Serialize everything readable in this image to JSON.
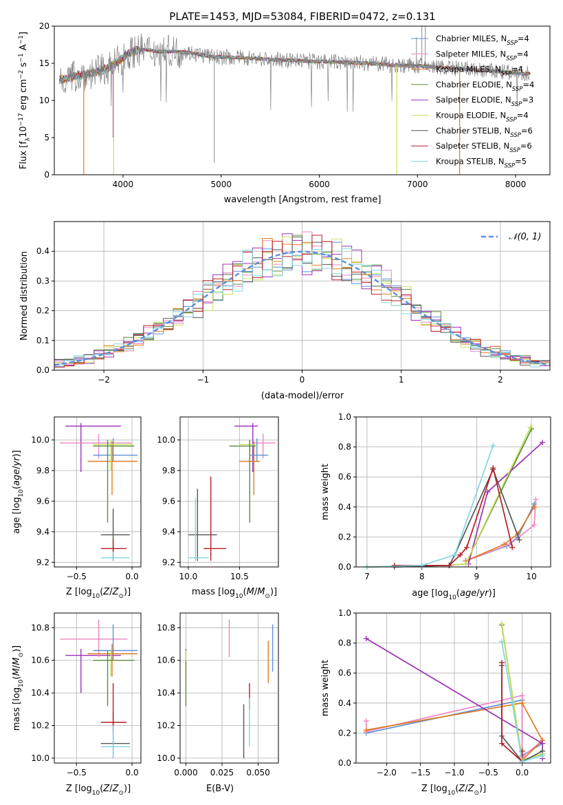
{
  "colors": {
    "Chabrier MILES": "#5b8fd8",
    "Salpeter MILES": "#e986c2",
    "Kroupa MILES": "#e07b22",
    "Chabrier ELODIE": "#5a8c3c",
    "Salpeter ELODIE": "#9b30b5",
    "Kroupa ELODIE": "#c9e05a",
    "Chabrier STELIB": "#555555",
    "Salpeter STELIB": "#b81b22",
    "Kroupa STELIB": "#7fd6e0"
  },
  "chart_data": [
    {
      "type": "line",
      "title": "PLATE=1453, MJD=53084, FIBERID=0472, z=0.131",
      "xlabel": "wavelength [Angstrom, rest frame]",
      "ylabel": "Flux [f_λ10^-17 erg cm^-2 s^-1 A^-1]",
      "xlim": [
        3300,
        8350
      ],
      "ylim": [
        0,
        20
      ],
      "xticks": [
        4000,
        5000,
        6000,
        7000,
        8000
      ],
      "yticks": [
        0,
        5,
        10,
        15,
        20
      ],
      "grid": false,
      "legend_position": "upper right",
      "legend": [
        {
          "name": "Chabrier MILES",
          "nssp": "4"
        },
        {
          "name": "Salpeter MILES",
          "nssp": "4"
        },
        {
          "name": "Kroupa MILES",
          "nssp": "4"
        },
        {
          "name": "Chabrier ELODIE",
          "nssp": "4"
        },
        {
          "name": "Salpeter ELODIE",
          "nssp": "3"
        },
        {
          "name": "Kroupa ELODIE",
          "nssp": "4"
        },
        {
          "name": "Chabrier STELIB",
          "nssp": "6"
        },
        {
          "name": "Salpeter STELIB",
          "nssp": "6"
        },
        {
          "name": "Kroupa STELIB",
          "nssp": "5"
        }
      ],
      "data_continuum": {
        "x": [
          3350,
          3450,
          3550,
          3650,
          3750,
          3850,
          3950,
          4050,
          4150,
          4250,
          4350,
          4500,
          4700,
          4900,
          5100,
          5300,
          5500,
          5700,
          5900,
          6100,
          6300,
          6500,
          6700,
          6900,
          7100,
          7300,
          7500,
          7700,
          7900,
          8100
        ],
        "y": [
          12.8,
          13.0,
          13.4,
          13.6,
          13.9,
          14.4,
          15.2,
          16.3,
          16.8,
          16.8,
          16.6,
          16.6,
          16.4,
          15.9,
          15.8,
          15.7,
          15.5,
          15.4,
          15.3,
          15.2,
          15.1,
          15.0,
          14.8,
          14.7,
          14.6,
          14.4,
          14.2,
          14.0,
          13.8,
          13.6
        ]
      },
      "model_dips": [
        {
          "series": "Kroupa MILES",
          "x": 3600,
          "to": 0
        },
        {
          "series": "Salpeter ELODIE",
          "x": 3900,
          "to": 5
        },
        {
          "series": "Kroupa ELODIE",
          "x": 3905,
          "to": 0
        },
        {
          "series": "Kroupa ELODIE",
          "x": 6790,
          "to": 0
        },
        {
          "series": "Kroupa MILES",
          "x": 7430,
          "to": 0
        }
      ]
    },
    {
      "type": "line",
      "xlabel": "(data-model)/error",
      "ylabel": "Normed distribution",
      "xlim": [
        -2.5,
        2.5
      ],
      "ylim": [
        0,
        0.5
      ],
      "xticks": [
        -2,
        -1,
        0,
        1,
        2
      ],
      "yticks": [
        0.0,
        0.1,
        0.2,
        0.3,
        0.4
      ],
      "grid": true,
      "legend_position": "upper right",
      "legend": [
        "N(0,1)"
      ],
      "histogram_bin_width": 0.1
    },
    {
      "type": "scatter",
      "xlabel": "Z [log10(Z/Z⊙)]",
      "ylabel": "age  [log10(age/yr)]",
      "xlim": [
        -0.7,
        0.08
      ],
      "ylim": [
        9.17,
        10.15
      ],
      "xticks": [
        -0.5,
        0.0
      ],
      "yticks": [
        9.2,
        9.4,
        9.6,
        9.8,
        10.0
      ],
      "grid": true,
      "points": [
        {
          "series": "Salpeter ELODIE",
          "x": -0.46,
          "y": 10.09,
          "xlo": -0.6,
          "xhi": -0.1,
          "ylo": 9.79,
          "yhi": 10.11
        },
        {
          "series": "Salpeter MILES",
          "x": -0.3,
          "y": 9.98,
          "xlo": -0.65,
          "xhi": 0.0,
          "ylo": 9.88,
          "yhi": 10.04
        },
        {
          "series": "Chabrier MILES",
          "x": -0.17,
          "y": 9.9,
          "xlo": -0.35,
          "xhi": 0.05,
          "ylo": 9.86,
          "yhi": 10.01
        },
        {
          "series": "Kroupa MILES",
          "x": -0.18,
          "y": 9.86,
          "xlo": -0.4,
          "xhi": 0.05,
          "ylo": 9.64,
          "yhi": 9.99
        },
        {
          "series": "Kroupa ELODIE",
          "x": -0.19,
          "y": 9.97,
          "xlo": -0.35,
          "xhi": 0.01,
          "ylo": 9.8,
          "yhi": 10.0
        },
        {
          "series": "Chabrier ELODIE",
          "x": -0.22,
          "y": 9.96,
          "xlo": -0.35,
          "xhi": 0.02,
          "ylo": 9.46,
          "yhi": 10.0
        },
        {
          "series": "Chabrier STELIB",
          "x": -0.17,
          "y": 9.38,
          "xlo": -0.28,
          "xhi": -0.02,
          "ylo": 9.21,
          "yhi": 9.55
        },
        {
          "series": "Salpeter STELIB",
          "x": -0.17,
          "y": 9.29,
          "xlo": -0.28,
          "xhi": -0.05,
          "ylo": 9.21,
          "yhi": 9.35
        },
        {
          "series": "Kroupa STELIB",
          "x": -0.17,
          "y": 9.23,
          "xlo": -0.28,
          "xhi": -0.02,
          "ylo": 9.21,
          "yhi": 9.27
        }
      ]
    },
    {
      "type": "scatter",
      "xlabel": "mass [log10(M/M⊙)]",
      "ylabel": "",
      "xlim": [
        9.92,
        10.88
      ],
      "ylim": [
        9.17,
        10.15
      ],
      "xticks": [
        10.0,
        10.5
      ],
      "yticks": [
        9.2,
        9.4,
        9.6,
        9.8,
        10.0
      ],
      "grid": true,
      "points": [
        {
          "series": "Salpeter ELODIE",
          "x": 10.63,
          "y": 10.09,
          "xlo": 10.45,
          "xhi": 10.68,
          "ylo": 9.79,
          "yhi": 10.11
        },
        {
          "series": "Salpeter MILES",
          "x": 10.73,
          "y": 9.98,
          "xlo": 10.62,
          "xhi": 10.85,
          "ylo": 9.88,
          "yhi": 10.04
        },
        {
          "series": "Chabrier MILES",
          "x": 10.67,
          "y": 9.9,
          "xlo": 10.6,
          "xhi": 10.78,
          "ylo": 9.86,
          "yhi": 10.01
        },
        {
          "series": "Kroupa MILES",
          "x": 10.64,
          "y": 9.86,
          "xlo": 10.5,
          "xhi": 10.7,
          "ylo": 9.64,
          "yhi": 9.99
        },
        {
          "series": "Kroupa ELODIE",
          "x": 10.6,
          "y": 9.97,
          "xlo": 10.5,
          "xhi": 10.66,
          "ylo": 9.8,
          "yhi": 10.0
        },
        {
          "series": "Chabrier ELODIE",
          "x": 10.6,
          "y": 9.96,
          "xlo": 10.4,
          "xhi": 10.66,
          "ylo": 9.46,
          "yhi": 10.0
        },
        {
          "series": "Chabrier STELIB",
          "x": 10.09,
          "y": 9.38,
          "xlo": 10.0,
          "xhi": 10.28,
          "ylo": 9.21,
          "yhi": 9.68
        },
        {
          "series": "Salpeter STELIB",
          "x": 10.22,
          "y": 9.29,
          "xlo": 10.15,
          "xhi": 10.37,
          "ylo": 9.21,
          "yhi": 9.76
        },
        {
          "series": "Kroupa STELIB",
          "x": 10.07,
          "y": 9.23,
          "xlo": 10.0,
          "xhi": 10.2,
          "ylo": 9.21,
          "yhi": 9.62
        }
      ]
    },
    {
      "type": "line",
      "xlabel": "age  [log10(age/yr)]",
      "ylabel": "mass weight",
      "xlim": [
        6.8,
        10.35
      ],
      "ylim": [
        0,
        1.0
      ],
      "xticks": [
        7,
        8,
        9,
        10
      ],
      "yticks": [
        0.0,
        0.2,
        0.4,
        0.6,
        0.8,
        1.0
      ],
      "grid": true,
      "series": [
        {
          "name": "Chabrier MILES",
          "points": [
            [
              8.8,
              0.04
            ],
            [
              9.55,
              0.14
            ],
            [
              9.75,
              0.2
            ],
            [
              10.05,
              0.42
            ]
          ]
        },
        {
          "name": "Salpeter MILES",
          "points": [
            [
              8.8,
              0.04
            ],
            [
              9.6,
              0.15
            ],
            [
              10.05,
              0.28
            ],
            [
              10.08,
              0.45
            ]
          ]
        },
        {
          "name": "Kroupa MILES",
          "points": [
            [
              8.8,
              0.04
            ],
            [
              9.5,
              0.15
            ],
            [
              9.75,
              0.22
            ],
            [
              10.05,
              0.4
            ]
          ]
        },
        {
          "name": "Chabrier ELODIE",
          "points": [
            [
              7.0,
              0.0
            ],
            [
              8.5,
              0.01
            ],
            [
              8.8,
              0.02
            ],
            [
              10.0,
              0.92
            ]
          ]
        },
        {
          "name": "Salpeter ELODIE",
          "points": [
            [
              8.85,
              0.02
            ],
            [
              9.2,
              0.5
            ],
            [
              10.2,
              0.83
            ]
          ]
        },
        {
          "name": "Kroupa ELODIE",
          "points": [
            [
              7.0,
              0.0
            ],
            [
              8.5,
              0.01
            ],
            [
              8.8,
              0.02
            ],
            [
              9.98,
              0.93
            ]
          ]
        },
        {
          "name": "Chabrier STELIB",
          "points": [
            [
              7.5,
              0.0
            ],
            [
              8.5,
              0.01
            ],
            [
              8.6,
              0.08
            ],
            [
              9.3,
              0.65
            ],
            [
              9.78,
              0.18
            ]
          ]
        },
        {
          "name": "Salpeter STELIB",
          "points": [
            [
              7.5,
              0.01
            ],
            [
              8.5,
              0.01
            ],
            [
              8.7,
              0.08
            ],
            [
              8.82,
              0.13
            ],
            [
              9.3,
              0.66
            ],
            [
              9.65,
              0.13
            ]
          ]
        },
        {
          "name": "Kroupa STELIB",
          "points": [
            [
              7.0,
              0.0
            ],
            [
              8.0,
              0.01
            ],
            [
              8.6,
              0.08
            ],
            [
              9.3,
              0.81
            ]
          ]
        }
      ]
    },
    {
      "type": "scatter",
      "xlabel": "Z [log10(Z/Z⊙)]",
      "ylabel": "mass [log10(M/M⊙)]",
      "xlim": [
        -0.7,
        0.08
      ],
      "ylim": [
        9.97,
        10.89
      ],
      "xticks": [
        -0.5,
        0.0
      ],
      "yticks": [
        10.0,
        10.2,
        10.4,
        10.6,
        10.8
      ],
      "grid": true,
      "points": [
        {
          "series": "Salpeter ELODIE",
          "x": -0.46,
          "y": 10.63,
          "xlo": -0.6,
          "xhi": -0.1,
          "ylo": 10.4,
          "yhi": 10.67
        },
        {
          "series": "Salpeter MILES",
          "x": -0.3,
          "y": 10.73,
          "xlo": -0.65,
          "xhi": -0.04,
          "ylo": 10.62,
          "yhi": 10.85
        },
        {
          "series": "Chabrier MILES",
          "x": -0.17,
          "y": 10.66,
          "xlo": -0.35,
          "xhi": 0.05,
          "ylo": 10.6,
          "yhi": 10.82
        },
        {
          "series": "Kroupa MILES",
          "x": -0.18,
          "y": 10.64,
          "xlo": -0.4,
          "xhi": 0.05,
          "ylo": 10.5,
          "yhi": 10.7
        },
        {
          "series": "Kroupa ELODIE",
          "x": -0.19,
          "y": 10.6,
          "xlo": -0.35,
          "xhi": -0.05,
          "ylo": 10.5,
          "yhi": 10.66
        },
        {
          "series": "Chabrier ELODIE",
          "x": -0.22,
          "y": 10.6,
          "xlo": -0.35,
          "xhi": 0.02,
          "ylo": 10.32,
          "yhi": 10.66
        },
        {
          "series": "Chabrier STELIB",
          "x": -0.17,
          "y": 10.09,
          "xlo": -0.28,
          "xhi": -0.02,
          "ylo": 10.0,
          "yhi": 10.28
        },
        {
          "series": "Salpeter STELIB",
          "x": -0.17,
          "y": 10.22,
          "xlo": -0.28,
          "xhi": -0.05,
          "ylo": 10.15,
          "yhi": 10.46
        },
        {
          "series": "Kroupa STELIB",
          "x": -0.17,
          "y": 10.07,
          "xlo": -0.28,
          "xhi": -0.02,
          "ylo": 10.0,
          "yhi": 10.2
        }
      ]
    },
    {
      "type": "scatter",
      "xlabel": "E(B-V)",
      "ylabel": "",
      "xlim": [
        -0.004,
        0.064
      ],
      "ylim": [
        9.97,
        10.89
      ],
      "xticks": [
        0.0,
        0.025,
        0.05
      ],
      "yticks": [
        10.0,
        10.2,
        10.4,
        10.6,
        10.8
      ],
      "grid": true,
      "points": [
        {
          "series": "Salpeter ELODIE",
          "x": 0.0,
          "y": 10.63,
          "ylo": 10.6,
          "yhi": 10.67
        },
        {
          "series": "Kroupa ELODIE",
          "x": 0.0,
          "y": 10.6,
          "ylo": 10.5,
          "yhi": 10.66
        },
        {
          "series": "Chabrier ELODIE",
          "x": 0.0,
          "y": 10.45,
          "ylo": 10.32,
          "yhi": 10.6
        },
        {
          "series": "Salpeter MILES",
          "x": 0.03,
          "y": 10.73,
          "ylo": 10.62,
          "yhi": 10.85
        },
        {
          "series": "Chabrier STELIB",
          "x": 0.04,
          "y": 10.15,
          "ylo": 10.0,
          "yhi": 10.33
        },
        {
          "series": "Salpeter STELIB",
          "x": 0.044,
          "y": 10.4,
          "ylo": 10.3,
          "yhi": 10.46
        },
        {
          "series": "Kroupa STELIB",
          "x": 0.044,
          "y": 10.2,
          "ylo": 10.07,
          "yhi": 10.37
        },
        {
          "series": "Kroupa MILES",
          "x": 0.057,
          "y": 10.6,
          "ylo": 10.46,
          "yhi": 10.72
        },
        {
          "series": "Chabrier MILES",
          "x": 0.06,
          "y": 10.67,
          "ylo": 10.53,
          "yhi": 10.82
        }
      ]
    },
    {
      "type": "line",
      "xlabel": "Z [log10(Z/Z⊙)]",
      "ylabel": "mass weight",
      "xlim": [
        -2.45,
        0.42
      ],
      "ylim": [
        0,
        1.0
      ],
      "xticks": [
        -2.0,
        -1.5,
        -1.0,
        -0.5,
        0.0
      ],
      "yticks": [
        0.0,
        0.2,
        0.4,
        0.6,
        0.8,
        1.0
      ],
      "grid": true,
      "series": [
        {
          "name": "Chabrier MILES",
          "points": [
            [
              -2.3,
              0.2
            ],
            [
              0.0,
              0.42
            ],
            [
              0.0,
              0.05
            ],
            [
              0.3,
              0.13
            ]
          ]
        },
        {
          "name": "Salpeter MILES",
          "points": [
            [
              -2.3,
              0.28
            ],
            [
              -2.3,
              0.21
            ],
            [
              0.0,
              0.45
            ],
            [
              0.0,
              0.04
            ],
            [
              0.3,
              0.15
            ]
          ]
        },
        {
          "name": "Kroupa MILES",
          "points": [
            [
              -2.3,
              0.22
            ],
            [
              0.0,
              0.4
            ],
            [
              0.3,
              0.15
            ],
            [
              0.0,
              0.02
            ]
          ]
        },
        {
          "name": "Chabrier ELODIE",
          "points": [
            [
              -0.3,
              0.92
            ],
            [
              0.0,
              0.02
            ],
            [
              0.3,
              0.06
            ]
          ]
        },
        {
          "name": "Salpeter ELODIE",
          "points": [
            [
              -2.3,
              0.83
            ],
            [
              0.3,
              0.13
            ],
            [
              0.3,
              0.03
            ]
          ]
        },
        {
          "name": "Kroupa ELODIE",
          "points": [
            [
              -0.3,
              0.93
            ],
            [
              0.0,
              0.02
            ],
            [
              0.3,
              0.06
            ]
          ]
        },
        {
          "name": "Chabrier STELIB",
          "points": [
            [
              -0.3,
              0.65
            ],
            [
              -0.3,
              0.18
            ],
            [
              0.0,
              0.01
            ],
            [
              0.3,
              0.08
            ]
          ]
        },
        {
          "name": "Salpeter STELIB",
          "points": [
            [
              -0.3,
              0.67
            ],
            [
              -0.3,
              0.13
            ],
            [
              0.0,
              0.01
            ],
            [
              0.0,
              0.08
            ]
          ]
        },
        {
          "name": "Kroupa STELIB",
          "points": [
            [
              -0.3,
              0.81
            ],
            [
              0.0,
              0.01
            ],
            [
              0.3,
              0.05
            ]
          ]
        }
      ]
    }
  ]
}
